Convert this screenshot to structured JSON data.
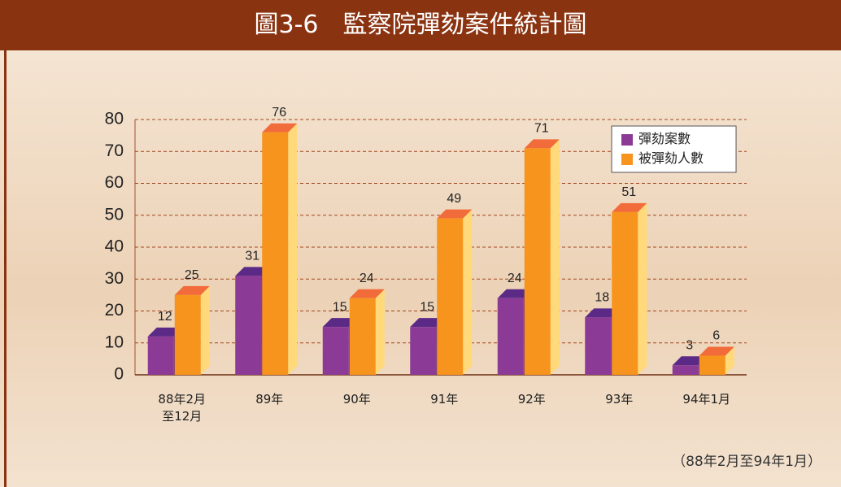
{
  "chart_data": {
    "type": "bar3d",
    "title": "圖3-6　監察院彈劾案件統計圖",
    "categories": [
      "88年2月至12月",
      "89年",
      "90年",
      "91年",
      "92年",
      "93年",
      "94年1月"
    ],
    "series": [
      {
        "name": "彈劾案數",
        "color": "#8b3a96",
        "values": [
          12,
          31,
          15,
          15,
          24,
          18,
          3
        ]
      },
      {
        "name": "被彈劾人數",
        "color": "#f7941d",
        "values": [
          25,
          76,
          24,
          49,
          71,
          51,
          6
        ]
      }
    ],
    "ylim": [
      0,
      80
    ],
    "yticks": [
      0,
      10,
      20,
      30,
      40,
      50,
      60,
      70,
      80
    ],
    "grid": true,
    "legend": "upper right",
    "note": "（88年2月至94年1月）"
  }
}
